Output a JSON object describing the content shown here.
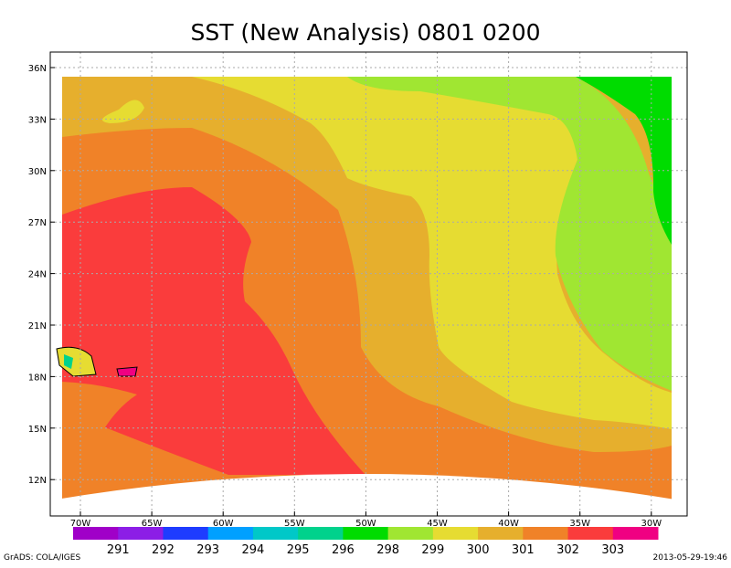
{
  "title": "SST (New Analysis)  0801 0200",
  "lat_ticks": [
    "36N",
    "33N",
    "30N",
    "27N",
    "24N",
    "21N",
    "18N",
    "15N",
    "12N"
  ],
  "lon_ticks": [
    "70W",
    "65W",
    "60W",
    "55W",
    "50W",
    "45W",
    "40W",
    "35W",
    "30W"
  ],
  "colorbar": {
    "colors": [
      "#a000c8",
      "#8c1ee6",
      "#1e3cff",
      "#00a0ff",
      "#00c8c8",
      "#00d28c",
      "#00dc00",
      "#a0e632",
      "#e6dc32",
      "#e6af2d",
      "#f08228",
      "#fa3c3c",
      "#f00082"
    ],
    "labels": [
      "291",
      "292",
      "293",
      "294",
      "295",
      "296",
      "298",
      "299",
      "300",
      "301",
      "302",
      "303"
    ]
  },
  "footer_left": "GrADS: COLA/IGES",
  "footer_right": "2013-05-29-19:46"
}
